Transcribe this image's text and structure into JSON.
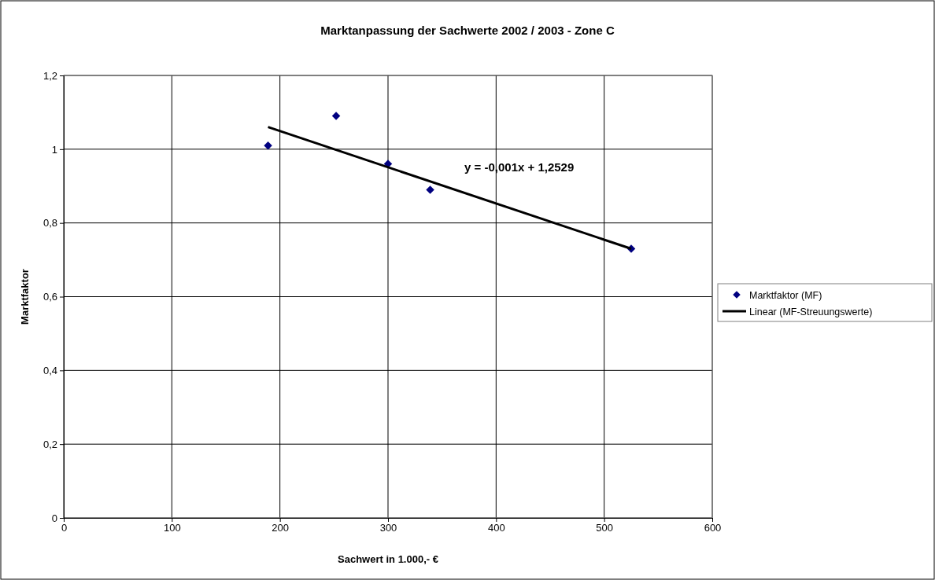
{
  "chart_data": {
    "type": "scatter",
    "title": "Marktanpassung der Sachwerte 2002 / 2003 - Zone C",
    "xlabel": "Sachwert in 1.000,- €",
    "ylabel": "Marktfaktor",
    "xlim": [
      0,
      600
    ],
    "xticks": [
      0,
      100,
      200,
      300,
      400,
      500,
      600
    ],
    "ylim": [
      0,
      1.2
    ],
    "yticks": [
      {
        "value": 0,
        "label": "0"
      },
      {
        "value": 0.2,
        "label": "0,2"
      },
      {
        "value": 0.4,
        "label": "0,4"
      },
      {
        "value": 0.6,
        "label": "0,6"
      },
      {
        "value": 0.8,
        "label": "0,8"
      },
      {
        "value": 1,
        "label": "1"
      },
      {
        "value": 1.2,
        "label": "1,2"
      }
    ],
    "grid": true,
    "legend": "right",
    "series": [
      {
        "name": "Marktfaktor (MF)",
        "marker": "diamond",
        "color": "#000080",
        "x": [
          189,
          252,
          300,
          339,
          525
        ],
        "values": [
          1.01,
          1.09,
          0.96,
          0.89,
          0.73
        ]
      },
      {
        "name": "Linear (MF-Streuungswerte)",
        "type": "line",
        "marker": "none",
        "line_style": "solid",
        "color": "#000000",
        "x": [
          189,
          525
        ],
        "values": [
          1.06,
          0.73
        ]
      }
    ],
    "annotations": [
      "y = -0,001x + 1,2529"
    ]
  }
}
